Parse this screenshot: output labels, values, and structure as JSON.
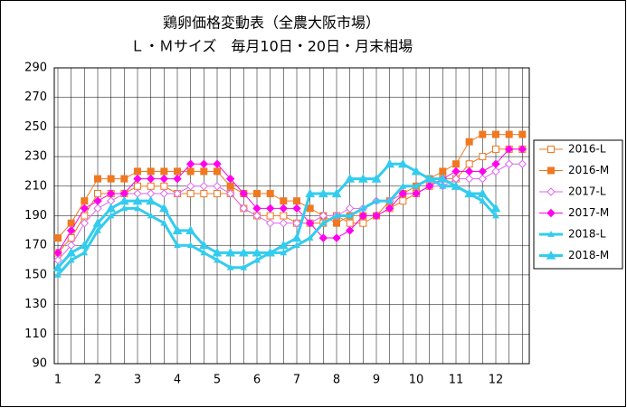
{
  "chart_data": {
    "type": "line",
    "title": "鶏卵価格変動表（全農大阪市場）",
    "subtitle": "Ｌ・Ｍサイズ　毎月10日・20日・月末相場",
    "categories": [
      "1",
      null,
      null,
      "2",
      null,
      null,
      "3",
      null,
      null,
      "4",
      null,
      null,
      "5",
      null,
      null,
      "6",
      null,
      null,
      "7",
      null,
      null,
      "8",
      null,
      null,
      "9",
      null,
      null,
      "10",
      null,
      null,
      "11",
      null,
      null,
      "12",
      null,
      null
    ],
    "ylim": [
      90,
      290
    ],
    "yticks": [
      90,
      110,
      130,
      150,
      170,
      190,
      210,
      230,
      250,
      270,
      290
    ],
    "grid": true,
    "legend": "right",
    "series": [
      {
        "name": "2016-L",
        "color": "#f07820",
        "marker": "square",
        "filled": false,
        "values": [
          165,
          175,
          190,
          205,
          205,
          205,
          210,
          210,
          210,
          205,
          205,
          205,
          205,
          205,
          195,
          190,
          190,
          190,
          185,
          185,
          185,
          190,
          185,
          185,
          190,
          195,
          200,
          205,
          210,
          215,
          215,
          225,
          230,
          235,
          235,
          235
        ]
      },
      {
        "name": "2016-M",
        "color": "#f07820",
        "marker": "square",
        "filled": true,
        "values": [
          175,
          185,
          200,
          215,
          215,
          215,
          220,
          220,
          220,
          220,
          220,
          220,
          220,
          210,
          205,
          205,
          205,
          200,
          200,
          195,
          190,
          185,
          190,
          190,
          190,
          200,
          205,
          210,
          215,
          220,
          225,
          240,
          245,
          245,
          245,
          245
        ]
      },
      {
        "name": "2017-L",
        "color": "#dd66ee",
        "marker": "diamond",
        "filled": false,
        "values": [
          160,
          170,
          185,
          195,
          200,
          205,
          205,
          205,
          205,
          205,
          210,
          210,
          210,
          205,
          195,
          190,
          185,
          185,
          185,
          185,
          190,
          190,
          195,
          195,
          200,
          200,
          205,
          205,
          210,
          210,
          215,
          215,
          215,
          220,
          225,
          225
        ]
      },
      {
        "name": "2017-M",
        "color": "#ff00ee",
        "marker": "diamond",
        "filled": true,
        "values": [
          165,
          180,
          195,
          200,
          205,
          205,
          215,
          215,
          215,
          215,
          225,
          225,
          225,
          215,
          205,
          195,
          195,
          195,
          195,
          185,
          175,
          175,
          180,
          190,
          190,
          195,
          205,
          205,
          210,
          215,
          220,
          220,
          220,
          225,
          235,
          235
        ]
      },
      {
        "name": "2018-L",
        "color": "#33ccee",
        "marker": "triangle",
        "filled": false,
        "values": [
          150,
          160,
          165,
          180,
          190,
          195,
          195,
          190,
          185,
          170,
          170,
          165,
          160,
          155,
          155,
          160,
          165,
          165,
          170,
          175,
          185,
          190,
          190,
          195,
          200,
          200,
          210,
          210,
          215,
          210,
          210,
          205,
          200,
          190,
          null,
          null
        ]
      },
      {
        "name": "2018-M",
        "color": "#33ccee",
        "marker": "triangle",
        "filled": true,
        "values": [
          155,
          165,
          170,
          185,
          195,
          200,
          200,
          200,
          195,
          180,
          180,
          170,
          165,
          165,
          165,
          165,
          165,
          170,
          175,
          205,
          205,
          205,
          215,
          215,
          215,
          225,
          225,
          220,
          215,
          215,
          210,
          205,
          205,
          195,
          null,
          null
        ]
      }
    ]
  }
}
